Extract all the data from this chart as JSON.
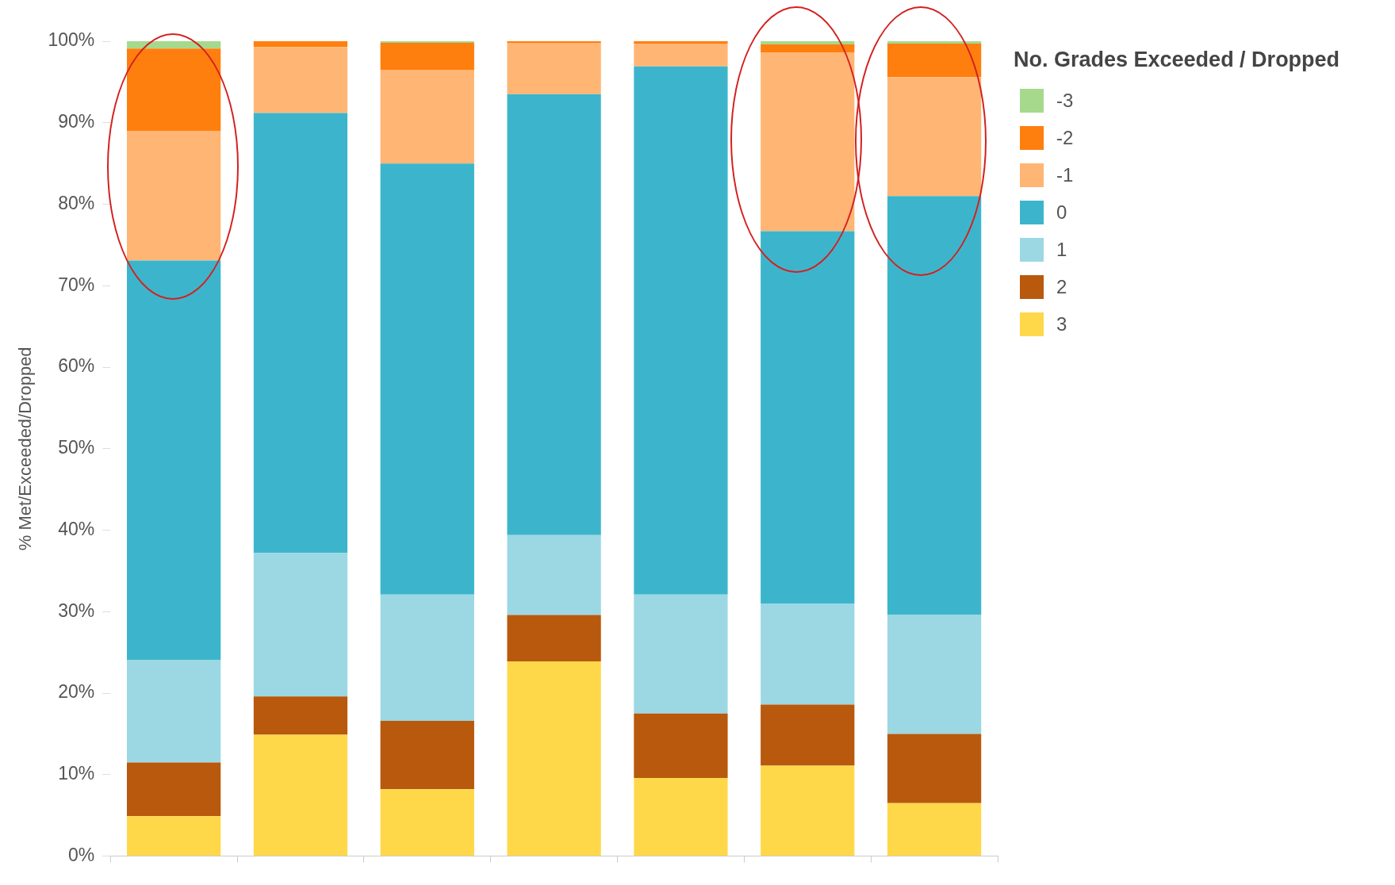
{
  "chart_data": {
    "type": "bar",
    "stacked": true,
    "ylabel": "% Met/Exceeded/Dropped",
    "legend_title": "No. Grades Exceeded / Dropped",
    "legend": "top right",
    "categories": [
      null,
      null,
      null,
      null,
      null,
      null,
      null
    ],
    "ylim": [
      0,
      100
    ],
    "yticks": [
      {
        "value": 0,
        "label": "0%"
      },
      {
        "value": 10,
        "label": "10%"
      },
      {
        "value": 20,
        "label": "20%"
      },
      {
        "value": 30,
        "label": "30%"
      },
      {
        "value": 40,
        "label": "40%"
      },
      {
        "value": 50,
        "label": "50%"
      },
      {
        "value": 60,
        "label": "60%"
      },
      {
        "value": 70,
        "label": "70%"
      },
      {
        "value": 80,
        "label": "80%"
      },
      {
        "value": 90,
        "label": "90%"
      },
      {
        "value": 100,
        "label": "100%"
      }
    ],
    "series": [
      {
        "name": "3",
        "color": "#ffd84a",
        "values": [
          4.9,
          14.9,
          8.2,
          23.9,
          9.6,
          11.1,
          6.5
        ]
      },
      {
        "name": "2",
        "color": "#b8590e",
        "values": [
          6.6,
          4.7,
          8.4,
          5.7,
          7.9,
          7.5,
          8.5
        ]
      },
      {
        "name": "1",
        "color": "#9bd8e3",
        "values": [
          12.6,
          17.6,
          15.5,
          9.8,
          14.6,
          12.4,
          14.6
        ]
      },
      {
        "name": "0",
        "color": "#3cb5cc",
        "values": [
          49.0,
          54.0,
          52.9,
          54.1,
          64.8,
          45.7,
          51.4
        ]
      },
      {
        "name": "-1",
        "color": "#ffb574",
        "values": [
          15.9,
          8.1,
          11.5,
          6.3,
          2.8,
          21.9,
          14.6
        ]
      },
      {
        "name": "-2",
        "color": "#ff7f0e",
        "values": [
          10.1,
          0.7,
          3.3,
          0.2,
          0.3,
          1.0,
          4.1
        ]
      },
      {
        "name": "-3",
        "color": "#a6d98c",
        "values": [
          0.9,
          null,
          0.2,
          null,
          null,
          0.4,
          0.3
        ]
      }
    ]
  }
}
